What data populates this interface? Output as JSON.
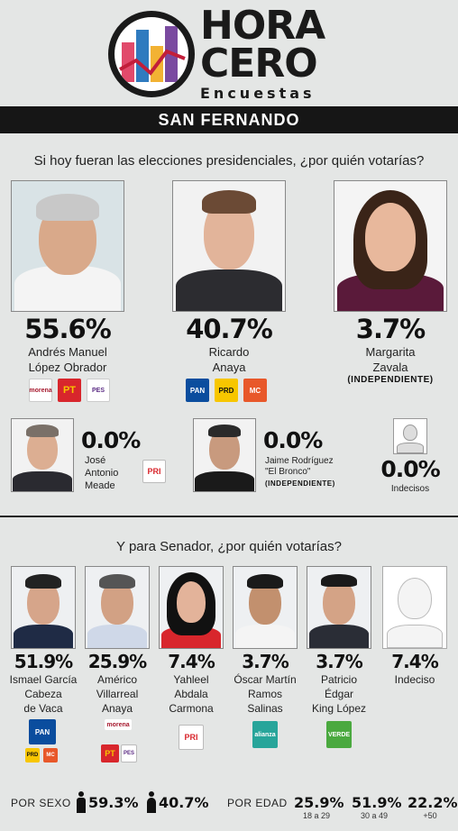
{
  "brand": {
    "line1": "HORA",
    "line2": "CERO",
    "line3": "Encuestas"
  },
  "city": "SAN FERNANDO",
  "presidential": {
    "question": "Si hoy fueran las elecciones presidenciales, ¿por quién votarías?",
    "main": [
      {
        "pct": "55.6%",
        "name1": "Andrés Manuel",
        "name2": "López Obrador",
        "parties": [
          "morena",
          "PT",
          "PES"
        ]
      },
      {
        "pct": "40.7%",
        "name1": "Ricardo",
        "name2": "Anaya",
        "parties": [
          "PAN",
          "PRD",
          "MC"
        ]
      },
      {
        "pct": "3.7%",
        "name1": "Margarita",
        "name2": "Zavala",
        "tag": "(INDEPENDIENTE)"
      }
    ],
    "minor": [
      {
        "pct": "0.0%",
        "name1": "José",
        "name2": "Antonio",
        "name3": "Meade",
        "party": "PRI"
      },
      {
        "pct": "0.0%",
        "name1": "Jaime Rodríguez",
        "name2": "\"El Bronco\"",
        "tag": "(INDEPENDIENTE)"
      },
      {
        "pct": "0.0%",
        "name1": "Indecisos"
      }
    ]
  },
  "senate": {
    "question": "Y para Senador, ¿por quién votarías?",
    "candidates": [
      {
        "pct": "51.9%",
        "name1": "Ismael García",
        "name2": "Cabeza",
        "name3": "de Vaca"
      },
      {
        "pct": "25.9%",
        "name1": "Américo",
        "name2": "Villarreal",
        "name3": "Anaya"
      },
      {
        "pct": "7.4%",
        "name1": "Yahleel",
        "name2": "Abdala",
        "name3": "Carmona"
      },
      {
        "pct": "3.7%",
        "name1": "Óscar Martín",
        "name2": "Ramos",
        "name3": "Salinas"
      },
      {
        "pct": "3.7%",
        "name1": "Patricio",
        "name2": "Édgar",
        "name3": "King López"
      },
      {
        "pct": "7.4%",
        "name1": "Indeciso"
      }
    ]
  },
  "footer": {
    "sex_label": "POR SEXO",
    "male_pct": "59.3%",
    "female_pct": "40.7%",
    "age_label": "POR EDAD",
    "ages": [
      {
        "pct": "25.9%",
        "range": "18 a 29"
      },
      {
        "pct": "51.9%",
        "range": "30 a 49"
      },
      {
        "pct": "22.2%",
        "range": "+50"
      }
    ]
  },
  "colors": {
    "pan": "#0a4d9e",
    "pri_green": "#1a8d3a",
    "pri_red": "#d8262c",
    "morena": "#a6192e",
    "pt": "#d8262c",
    "mc": "#e8582a",
    "prd": "#f7c600",
    "verde": "#4aa93f",
    "nueva_alianza": "#27a59a"
  }
}
